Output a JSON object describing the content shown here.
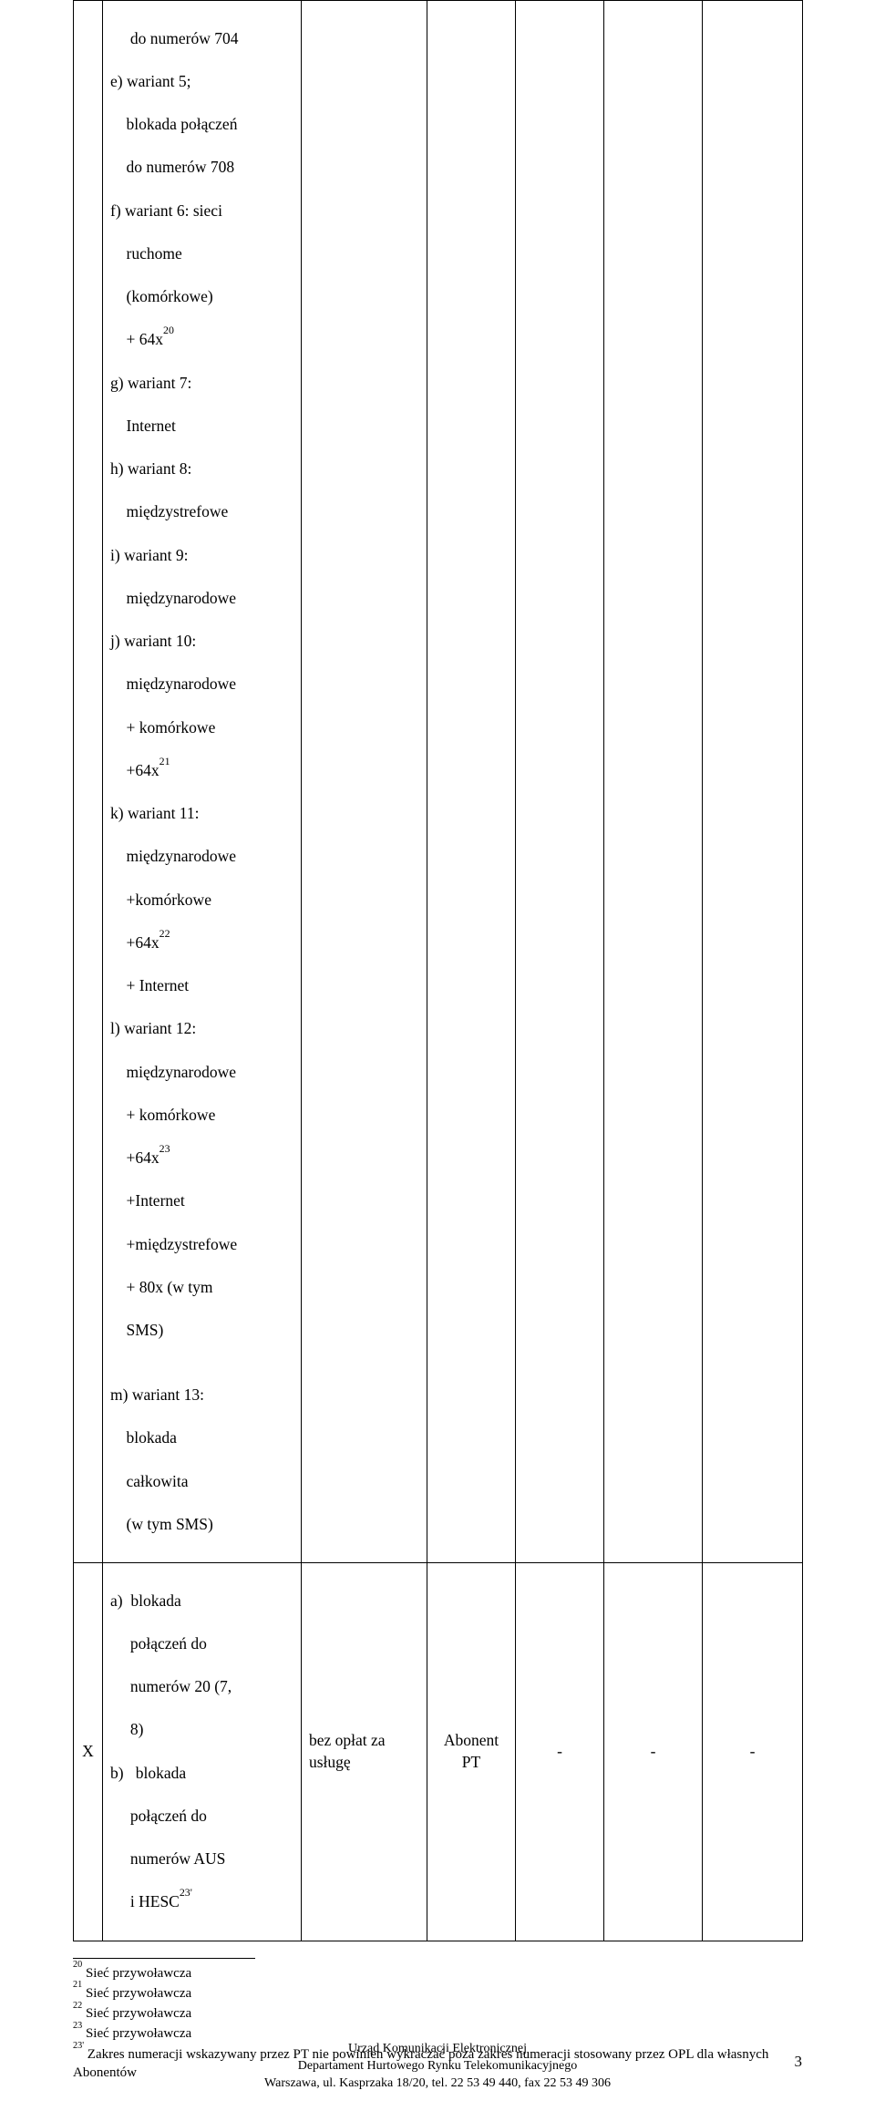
{
  "table": {
    "row1": {
      "col1_lines": {
        "l1": "     do numerów 704",
        "l2": "e) wariant 5;",
        "l3": "    blokada połączeń",
        "l4": "    do numerów 708",
        "l5": "f) wariant 6: sieci",
        "l6": "    ruchome",
        "l7": "    (komórkowe)",
        "l8a": "    + 64x",
        "l8_sup": "20",
        "l9": "g) wariant 7:",
        "l10": "    Internet",
        "l11": "h) wariant 8:",
        "l12": "    międzystrefowe",
        "l13": "i) wariant 9:",
        "l14": "    międzynarodowe",
        "l15": "j) wariant 10:",
        "l16": "    międzynarodowe",
        "l17": "    + komórkowe",
        "l18a": "    +64x",
        "l18_sup": "21",
        "l19": "k) wariant 11:",
        "l20": "    międzynarodowe",
        "l21": "    +komórkowe",
        "l22a": "    +64x",
        "l22_sup": "22",
        "l23": "    + Internet",
        "l24": "l) wariant 12:",
        "l25": "    międzynarodowe",
        "l26": "    + komórkowe",
        "l27a": "    +64x",
        "l27_sup": "23",
        "l28": "    +Internet",
        "l29": "    +międzystrefowe",
        "l30": "    + 80x (w tym",
        "l31": "    SMS)",
        "l32": "m) wariant 13:",
        "l33": "    blokada",
        "l34": "    całkowita",
        "l35": "    (w tym SMS)"
      }
    },
    "row2": {
      "col0": "X",
      "col1_lines": {
        "a1": "a)  blokada",
        "a2": "     połączeń do",
        "a3": "     numerów 20 (7,",
        "a4": "     8)",
        "b1": "b)   blokada",
        "b2": "     połączeń do",
        "b3": "     numerów AUS",
        "b4a": "     i HESC",
        "b4_sup": "23'"
      },
      "col2_l1": "bez opłat za",
      "col2_l2": "usługę",
      "col3_l1": "Abonent",
      "col3_l2": "PT",
      "col4": "-",
      "col5": "-",
      "col6": "-"
    }
  },
  "footnotes": {
    "f20_sup": "20",
    "f20_text": " Sieć przywoławcza",
    "f21_sup": "21",
    "f21_text": " Sieć przywoławcza",
    "f22_sup": "22",
    "f22_text": " Sieć przywoławcza",
    "f23_sup": "23",
    "f23_text": " Sieć przywoławcza",
    "f23p_sup": "23'",
    "f23p_text": " Zakres numeracji wskazywany przez PT nie powinien wykraczać poza zakres numeracji stosowany przez OPL dla własnych Abonentów"
  },
  "footer": {
    "line1": "Urząd Komunikacji Elektronicznej",
    "line2": "Departament Hurtowego Rynku Telekomunikacyjnego",
    "line3": "Warszawa, ul. Kasprzaka 18/20, tel. 22 53 49 440, fax 22 53 49 306",
    "page": "3"
  },
  "colors": {
    "text": "#000000",
    "border": "#000000",
    "background": "#ffffff"
  }
}
